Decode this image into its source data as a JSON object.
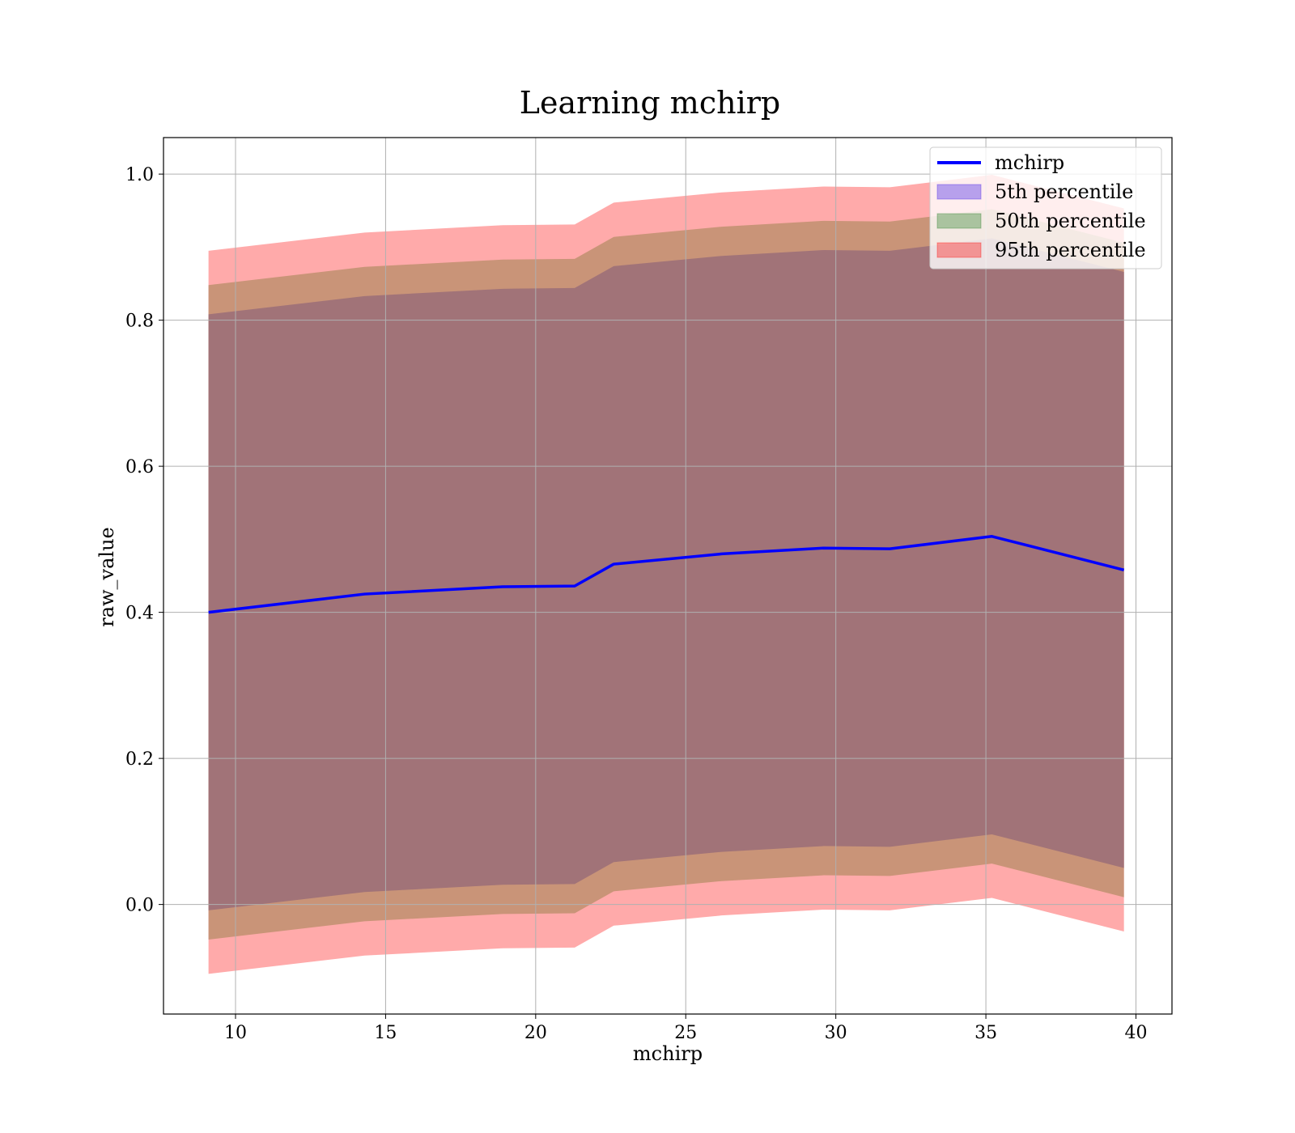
{
  "chart_data": {
    "type": "area",
    "title": "Learning mchirp",
    "xlabel": "mchirp",
    "ylabel": "raw_value",
    "xlim": [
      7.6,
      41.2
    ],
    "ylim": [
      -0.15,
      1.05
    ],
    "xticks": [
      10,
      15,
      20,
      25,
      30,
      35,
      40
    ],
    "yticks": [
      0.0,
      0.2,
      0.4,
      0.6,
      0.8,
      1.0
    ],
    "grid": true,
    "legend_position": "top-right",
    "x": [
      9.1,
      14.3,
      18.9,
      21.3,
      22.6,
      26.2,
      29.6,
      31.8,
      35.2,
      39.6
    ],
    "mean": [
      0.4,
      0.425,
      0.435,
      0.436,
      0.466,
      0.48,
      0.488,
      0.487,
      0.504,
      0.458
    ],
    "series": [
      {
        "name": "mchirp",
        "kind": "line",
        "color": "#0000ff",
        "values": [
          0.4,
          0.425,
          0.435,
          0.436,
          0.466,
          0.48,
          0.488,
          0.487,
          0.504,
          0.458
        ]
      },
      {
        "name": "5th percentile",
        "kind": "band",
        "color": "#4b2be8",
        "half_width": 0.408
      },
      {
        "name": "50th percentile",
        "kind": "band",
        "color": "#1f7a1f",
        "half_width": 0.448
      },
      {
        "name": "95th percentile",
        "kind": "band",
        "color": "#ff0000",
        "half_width": 0.495
      }
    ],
    "band_colors_rendered": {
      "5th percentile": "#a17378",
      "50th percentile": "#c99478",
      "95th percentile": "#ffaaaa"
    }
  }
}
